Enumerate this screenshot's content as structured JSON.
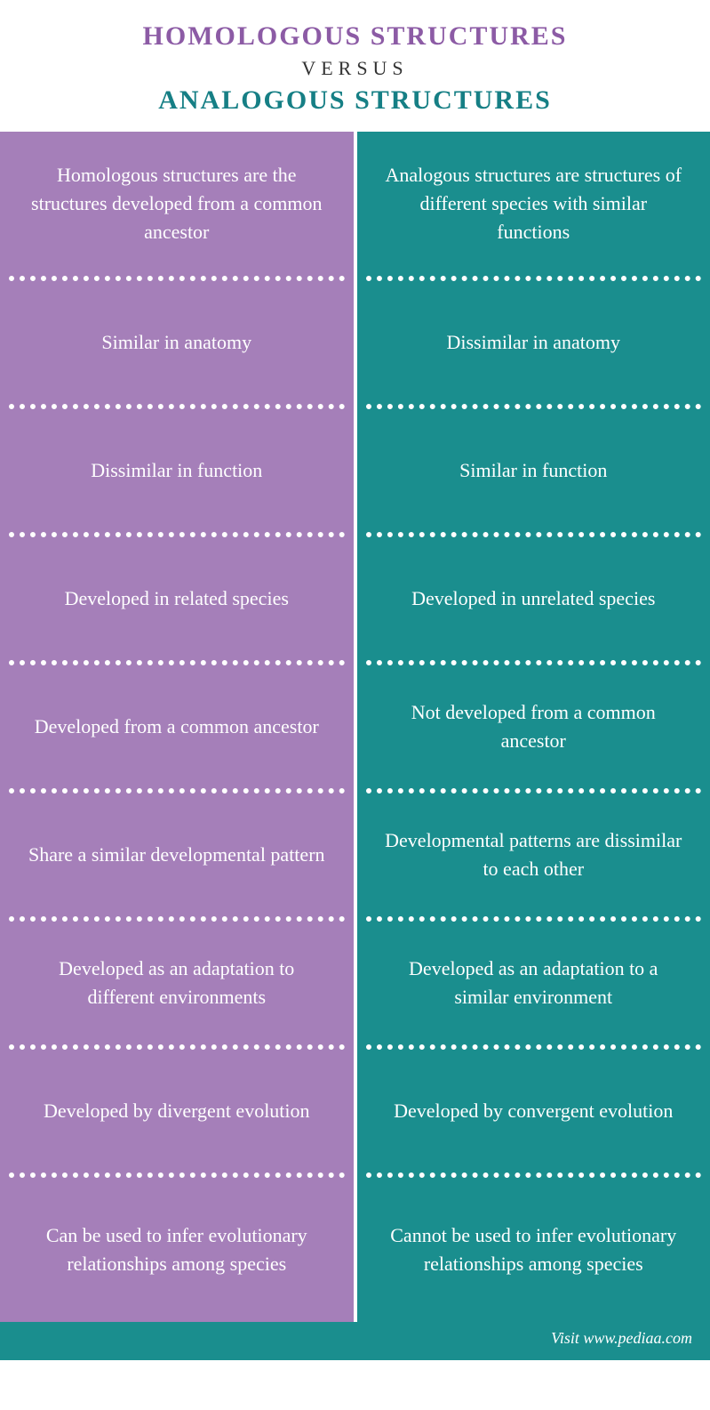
{
  "header": {
    "line1": "HOMOLOGOUS STRUCTURES",
    "versus": "VERSUS",
    "line3": "ANALOGOUS STRUCTURES",
    "color_left": "#8c5ba5",
    "color_right": "#167f85"
  },
  "colors": {
    "left_bg": "#a57fb9",
    "right_bg": "#1a8e8e",
    "text": "#ffffff",
    "divider": "#ffffff"
  },
  "rows": [
    {
      "left": "Homologous structures are the structures developed from a common ancestor",
      "right": "Analogous structures are structures of different species with similar functions",
      "tall": true
    },
    {
      "left": "Similar in anatomy",
      "right": "Dissimilar in anatomy"
    },
    {
      "left": "Dissimilar in function",
      "right": "Similar in function"
    },
    {
      "left": "Developed in related species",
      "right": "Developed in unrelated species"
    },
    {
      "left": "Developed from a common ancestor",
      "right": "Not developed from a common ancestor"
    },
    {
      "left": "Share a similar developmental pattern",
      "right": "Developmental patterns are dissimilar to each other"
    },
    {
      "left": "Developed as an adaptation to different environments",
      "right": "Developed as an adaptation to a similar environment"
    },
    {
      "left": "Developed by divergent evolution",
      "right": "Developed by convergent evolution"
    },
    {
      "left": "Can be used to infer evolutionary relationships among species",
      "right": "Cannot be used to infer evolutionary relationships among species",
      "tall": true
    }
  ],
  "footer": {
    "text": "Visit www.pediaa.com"
  }
}
